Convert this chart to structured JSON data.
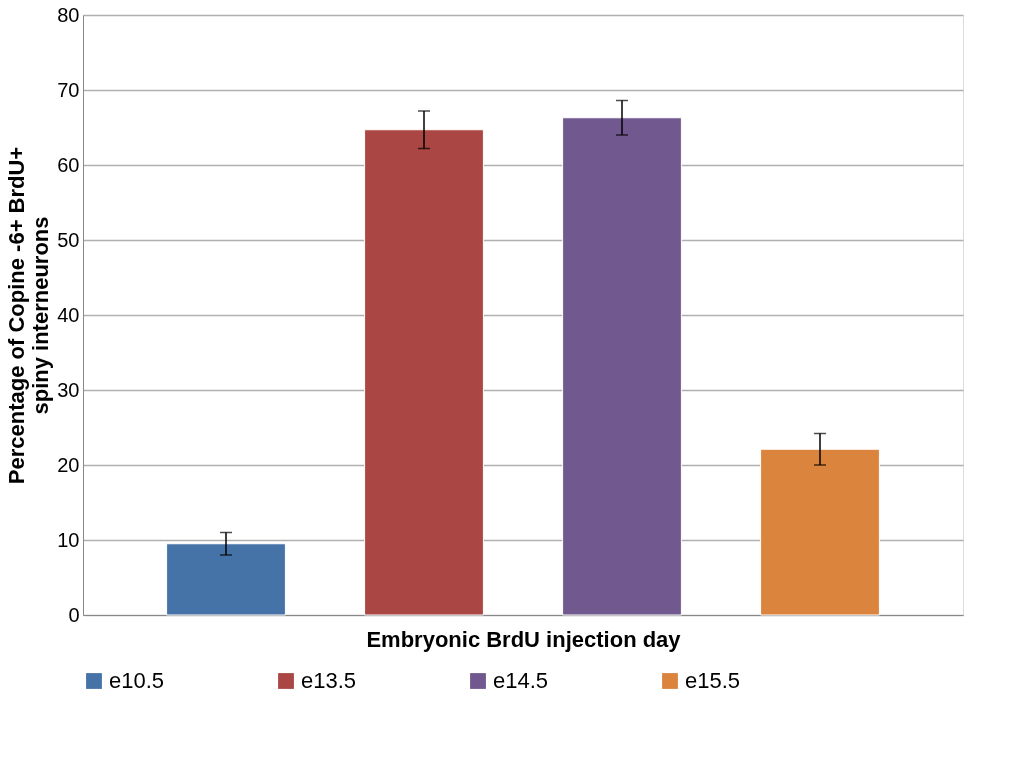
{
  "chart_data": {
    "type": "bar",
    "xlabel": "Embryonic BrdU injection day",
    "ylabel": "Percentage of Copine -6+ BrdU+\nspiny interneurons",
    "categories": [
      null
    ],
    "series": [
      {
        "name": "e10.5",
        "color": "#4572a7",
        "values": [
          9.5
        ],
        "errors": [
          1.5
        ]
      },
      {
        "name": "e13.5",
        "color": "#aa4643",
        "values": [
          64.7
        ],
        "errors": [
          2.5
        ]
      },
      {
        "name": "e14.5",
        "color": "#71588f",
        "values": [
          66.3
        ],
        "errors": [
          2.3
        ]
      },
      {
        "name": "e15.5",
        "color": "#db843d",
        "values": [
          22.1
        ],
        "errors": [
          2.1
        ]
      }
    ],
    "ylim": [
      0,
      80
    ],
    "yticks": [
      0,
      10,
      20,
      30,
      40,
      50,
      60,
      70,
      80
    ],
    "grid": "y",
    "legend": "bottom"
  }
}
